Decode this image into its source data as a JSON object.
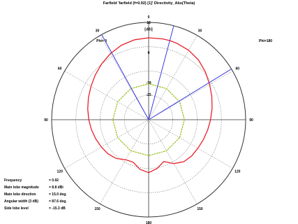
{
  "window": {
    "title": "Farfield 'farfield (f=0.92) [1]' Directivity_Abs(Theta)"
  },
  "chart_data": {
    "type": "polar",
    "title": "Farfield 'farfield (f=0.92) [1]' Directivity_Abs(Theta)",
    "angle_ticks": [
      {
        "angle": 0,
        "label": "0"
      },
      {
        "angle": 30,
        "label": "30"
      },
      {
        "angle": 60,
        "label": "60"
      },
      {
        "angle": 90,
        "label": "90"
      },
      {
        "angle": 120,
        "label": "120"
      },
      {
        "angle": 150,
        "label": "150"
      },
      {
        "angle": 180,
        "label": "180"
      },
      {
        "angle": -30,
        "label": "30"
      },
      {
        "angle": -60,
        "label": "60"
      },
      {
        "angle": -90,
        "label": "90"
      },
      {
        "angle": -120,
        "label": "120"
      },
      {
        "angle": -150,
        "label": "150"
      }
    ],
    "radial_ticks": [
      {
        "value": 18,
        "label": "18"
      },
      {
        "value": 0,
        "label": "0"
      },
      {
        "value": -18,
        "label": "-18"
      },
      {
        "value": -25,
        "label": "-25"
      }
    ],
    "radial_unit": "[dBi]",
    "rlim": [
      -40,
      18
    ],
    "phi_labels": {
      "left": "Phi= 0",
      "right": "Phi=180"
    },
    "series": [
      {
        "color": "#e8202a",
        "theta": [
          -180,
          -170,
          -160,
          -150,
          -140,
          -130,
          -120,
          -110,
          -100,
          -90,
          -80,
          -70,
          -60,
          -50,
          -40,
          -30,
          -20,
          -10,
          0,
          10,
          15,
          20,
          30,
          40,
          50,
          60,
          70,
          80,
          90,
          100,
          110,
          120,
          130,
          140,
          150,
          160,
          170,
          180
        ],
        "r": [
          -8.4,
          -10,
          -13,
          -12.5,
          -9.8,
          -8.3,
          -7.4,
          -6.4,
          -5.3,
          -4.2,
          -3,
          -1.7,
          -0.2,
          1.6,
          3.6,
          5.6,
          7.3,
          8.4,
          8.8,
          8.9,
          8.8,
          8.6,
          7.8,
          6.4,
          4.3,
          2.1,
          0.2,
          -1.5,
          -3,
          -4.2,
          -5.2,
          -6,
          -6.4,
          -7.3,
          -9.8,
          -13.5,
          -10.5,
          -8.4
        ]
      },
      {
        "color": "#8ab800",
        "theta": [
          -180,
          -150,
          -120,
          -90,
          -60,
          -30,
          0,
          30,
          60,
          90,
          120,
          150,
          180
        ],
        "r": [
          -18.6,
          -18.6,
          -18.6,
          -18.6,
          -18.6,
          -18.6,
          -18.6,
          -18.6,
          -18.6,
          -18.6,
          -18.6,
          -18.6,
          -18.6
        ]
      }
    ],
    "markers": [
      {
        "angle": 15,
        "color": "#3a3ae0"
      },
      {
        "angle": -29,
        "color": "#3a3ae0"
      },
      {
        "angle": 58.6,
        "color": "#3a3ae0"
      }
    ]
  },
  "info": [
    {
      "label": "Frequency",
      "value": "= 0.92"
    },
    {
      "label": "Main lobe magnitude",
      "value": "= 8.8 dBi"
    },
    {
      "label": "Main lobe direction",
      "value": "= 15.0 deg."
    },
    {
      "label": "Angular width (3 dB)",
      "value": "= 87.6 deg."
    },
    {
      "label": "Side lobe level",
      "value": "= -15.3 dB"
    }
  ]
}
